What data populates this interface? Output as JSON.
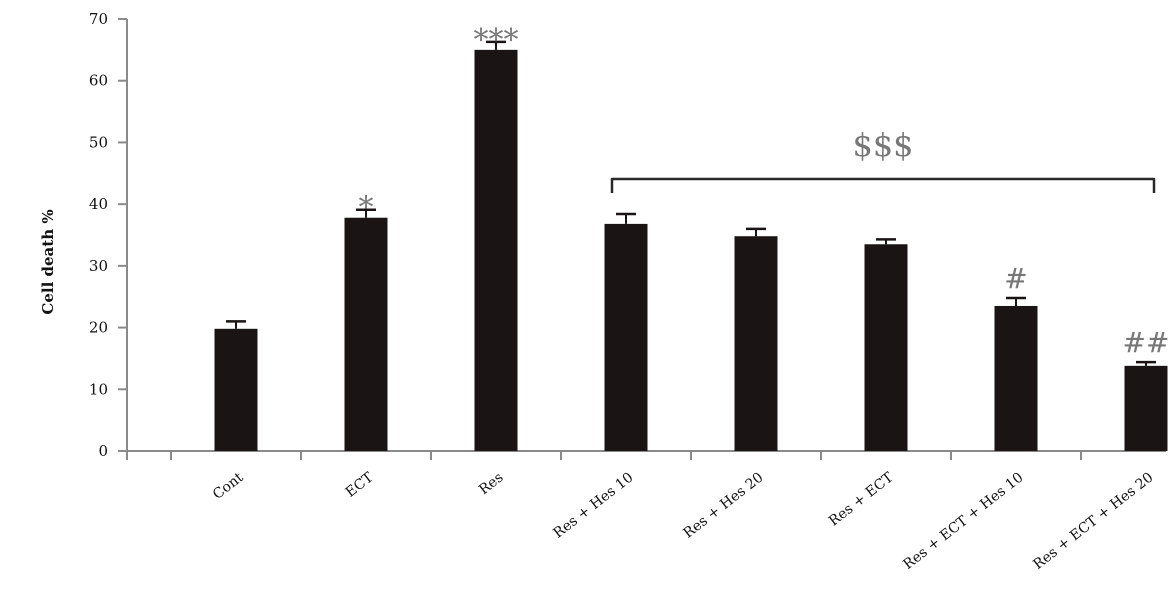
{
  "chart_data": {
    "type": "bar",
    "title": "",
    "xlabel": "",
    "ylabel": "Cell death %",
    "ylim": [
      0,
      70
    ],
    "yticks": [
      0,
      10,
      20,
      30,
      40,
      50,
      60,
      70
    ],
    "grid": false,
    "legend": "none",
    "bar_color": "#1a1414",
    "categories": [
      "Cont",
      "ECT",
      "Res",
      "Res + Hes 10",
      "Res + Hes 20",
      "Res + ECT",
      "Res + ECT + Hes 10",
      "Res + ECT + Hes 20"
    ],
    "values": [
      19.8,
      37.8,
      65.0,
      36.8,
      34.8,
      33.5,
      23.5,
      13.8
    ],
    "errors": [
      1.2,
      1.3,
      1.3,
      1.6,
      1.2,
      0.8,
      1.3,
      0.6
    ],
    "significance": [
      {
        "category": "ECT",
        "label": "*"
      },
      {
        "category": "Res",
        "label": "***"
      },
      {
        "category": "Res + ECT + Hes 10",
        "label": "#"
      },
      {
        "category": "Res + ECT + Hes 20",
        "label": "##"
      }
    ],
    "bracket": {
      "from": "Res + Hes 10",
      "to": "Res + ECT + Hes 20",
      "label": "$$$"
    }
  }
}
